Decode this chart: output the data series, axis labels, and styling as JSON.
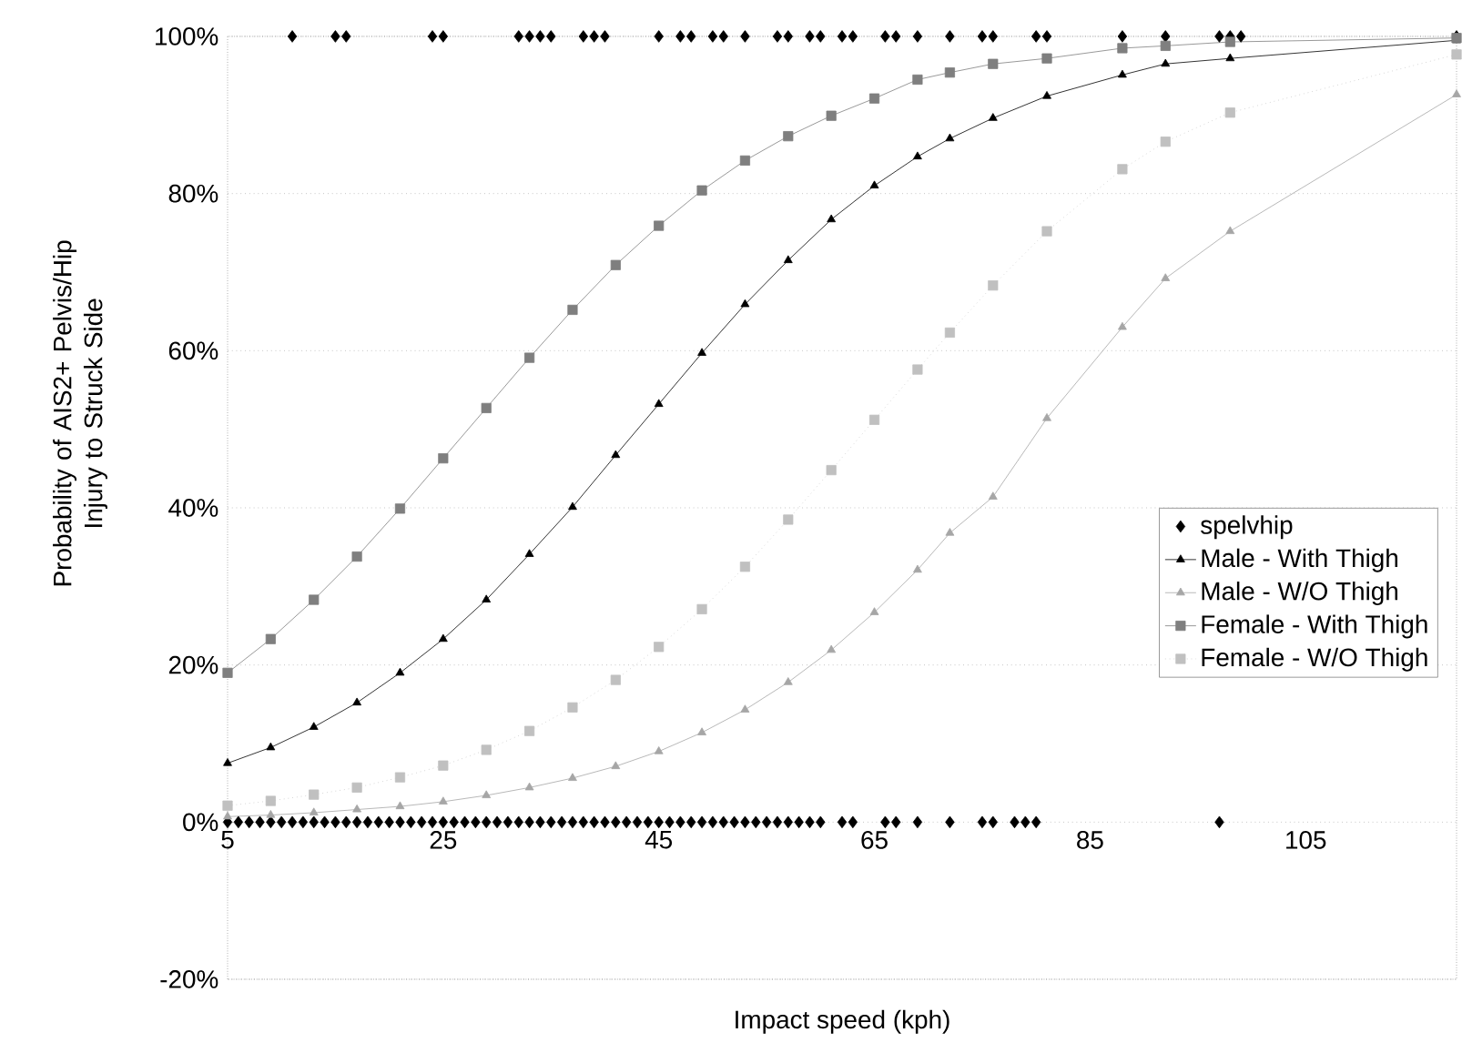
{
  "chart_data": {
    "type": "line",
    "xlabel": "Impact speed (kph)",
    "ylabel": "Probability of AIS2+ Pelvis/Hip Injury to Struck Side",
    "xlim": [
      5,
      119
    ],
    "ylim": [
      -20,
      100
    ],
    "xticks": [
      5,
      25,
      45,
      65,
      85,
      105
    ],
    "yticks": [
      {
        "value": -20,
        "label": "-20%"
      },
      {
        "value": 0,
        "label": "0%"
      },
      {
        "value": 20,
        "label": "20%"
      },
      {
        "value": 40,
        "label": "40%"
      },
      {
        "value": 60,
        "label": "60%"
      },
      {
        "value": 80,
        "label": "80%"
      },
      {
        "value": 100,
        "label": "100%"
      }
    ],
    "grid": "y",
    "legend": "right",
    "series": [
      {
        "name": "spelvhip",
        "type": "scatter",
        "marker": "diamond",
        "color": "#000000",
        "x": [
          11,
          15,
          16,
          24,
          25,
          32,
          33,
          34,
          35,
          38,
          39,
          40,
          45,
          47,
          48,
          50,
          51,
          53,
          56,
          57,
          59,
          60,
          62,
          63,
          66,
          67,
          69,
          72,
          75,
          76,
          80,
          81,
          88,
          92,
          97,
          98,
          99,
          119,
          5,
          6,
          7,
          8,
          9,
          10,
          11,
          12,
          13,
          14,
          15,
          16,
          17,
          18,
          19,
          20,
          21,
          22,
          23,
          24,
          25,
          26,
          27,
          28,
          29,
          30,
          31,
          32,
          33,
          34,
          35,
          36,
          37,
          38,
          39,
          40,
          41,
          42,
          43,
          44,
          45,
          46,
          47,
          48,
          49,
          50,
          51,
          52,
          53,
          54,
          55,
          56,
          57,
          58,
          59,
          60,
          62,
          63,
          66,
          67,
          69,
          72,
          75,
          76,
          78,
          79,
          80,
          97
        ],
        "values": [
          100,
          100,
          100,
          100,
          100,
          100,
          100,
          100,
          100,
          100,
          100,
          100,
          100,
          100,
          100,
          100,
          100,
          100,
          100,
          100,
          100,
          100,
          100,
          100,
          100,
          100,
          100,
          100,
          100,
          100,
          100,
          100,
          100,
          100,
          100,
          100,
          100,
          100,
          0,
          0,
          0,
          0,
          0,
          0,
          0,
          0,
          0,
          0,
          0,
          0,
          0,
          0,
          0,
          0,
          0,
          0,
          0,
          0,
          0,
          0,
          0,
          0,
          0,
          0,
          0,
          0,
          0,
          0,
          0,
          0,
          0,
          0,
          0,
          0,
          0,
          0,
          0,
          0,
          0,
          0,
          0,
          0,
          0,
          0,
          0,
          0,
          0,
          0,
          0,
          0,
          0,
          0,
          0,
          0,
          0,
          0,
          0,
          0,
          0,
          0,
          0,
          0,
          0,
          0,
          0,
          0
        ]
      },
      {
        "name": "Male - With Thigh",
        "marker": "triangle",
        "line_style": "solid",
        "color": "#000000",
        "x": [
          5,
          9,
          13,
          17,
          21,
          25,
          29,
          33,
          37,
          41,
          45,
          49,
          53,
          57,
          61,
          65,
          69,
          72,
          76,
          81,
          88,
          92,
          98,
          119
        ],
        "values": [
          7.5,
          9.5,
          12.1,
          15.2,
          19.0,
          23.3,
          28.3,
          34.1,
          40.1,
          46.7,
          53.2,
          59.7,
          65.9,
          71.5,
          76.7,
          81.0,
          84.7,
          87,
          89.6,
          92.4,
          95.1,
          96.5,
          97.2,
          99.5
        ]
      },
      {
        "name": "Male - W/O Thigh",
        "marker": "triangle",
        "line_style": "solid",
        "color": "#a6a6a6",
        "x": [
          5,
          9,
          13,
          17,
          21,
          25,
          29,
          33,
          37,
          41,
          45,
          49,
          53,
          57,
          61,
          65,
          69,
          72,
          76,
          81,
          88,
          92,
          98,
          119
        ],
        "values": [
          0.7,
          0.9,
          1.2,
          1.6,
          2.0,
          2.6,
          3.4,
          4.4,
          5.6,
          7.1,
          9.0,
          11.4,
          14.3,
          17.8,
          21.9,
          26.7,
          32.1,
          36.8,
          41.4,
          51.4,
          63,
          69.2,
          75.2,
          92.6
        ]
      },
      {
        "name": "Female - With Thigh",
        "marker": "square",
        "line_style": "solid",
        "color": "#7f7f7f",
        "x": [
          5,
          9,
          13,
          17,
          21,
          25,
          29,
          33,
          37,
          41,
          45,
          49,
          53,
          57,
          61,
          65,
          69,
          72,
          76,
          81,
          88,
          92,
          98,
          119
        ],
        "values": [
          19,
          23.3,
          28.3,
          33.8,
          39.9,
          46.3,
          52.7,
          59.1,
          65.2,
          70.9,
          75.9,
          80.4,
          84.2,
          87.3,
          89.9,
          92.1,
          94.5,
          95.4,
          96.5,
          97.2,
          98.5,
          98.8,
          99.3,
          99.8
        ]
      },
      {
        "name": "Female - W/O Thigh",
        "marker": "square",
        "line_style": "dotted",
        "color": "#c0c0c0",
        "x": [
          5,
          9,
          13,
          17,
          21,
          25,
          29,
          33,
          37,
          41,
          45,
          49,
          53,
          57,
          61,
          65,
          69,
          72,
          76,
          81,
          88,
          92,
          98,
          119
        ],
        "values": [
          2.1,
          2.7,
          3.5,
          4.4,
          5.7,
          7.2,
          9.2,
          11.6,
          14.6,
          18.1,
          22.3,
          27.1,
          32.5,
          38.5,
          44.8,
          51.2,
          57.6,
          62.3,
          68.3,
          75.2,
          83.1,
          86.6,
          90.3,
          97.7
        ]
      }
    ]
  }
}
